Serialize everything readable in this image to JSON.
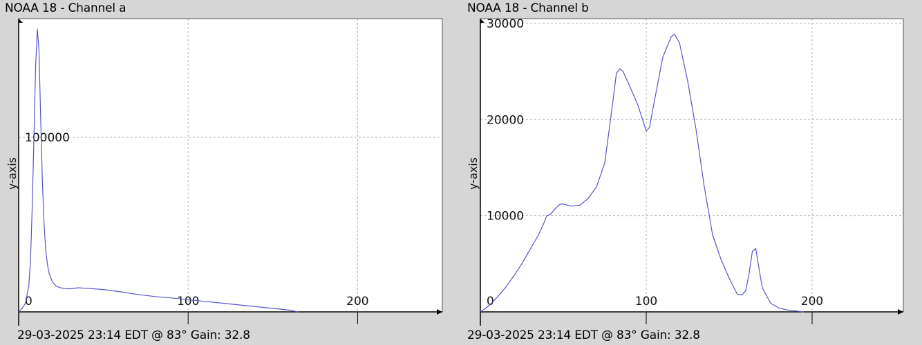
{
  "chart_data": [
    {
      "type": "line",
      "title": "NOAA 18 - Channel a",
      "footer": "29-03-2025 23:14 EDT @ 83° Gain: 32.8",
      "xlabel": "",
      "ylabel": "y-axis",
      "xlim": [
        0,
        250
      ],
      "ylim": [
        0,
        168000
      ],
      "xticks": [
        0,
        100,
        200
      ],
      "yticks": [
        100000
      ],
      "grid": true,
      "line_color": "#5555cc",
      "series": [
        {
          "x": [
            0,
            2,
            4,
            6,
            7,
            8,
            9,
            10,
            11,
            12,
            13,
            14,
            15,
            16,
            17,
            18,
            20,
            22,
            24,
            26,
            30,
            35,
            40,
            50,
            60,
            70,
            80,
            90,
            100,
            110,
            120,
            130,
            140,
            150,
            160,
            162,
            165
          ],
          "y": [
            0,
            2000,
            5000,
            15000,
            30000,
            60000,
            100000,
            140000,
            162000,
            150000,
            110000,
            75000,
            50000,
            35000,
            27000,
            22000,
            17000,
            15000,
            14000,
            13500,
            13200,
            13800,
            13500,
            12800,
            11500,
            10000,
            8800,
            8000,
            7000,
            6000,
            5000,
            4000,
            3000,
            2000,
            1000,
            500,
            0
          ]
        }
      ]
    },
    {
      "type": "line",
      "title": "NOAA 18 - Channel b",
      "footer": "29-03-2025 23:14 EDT @ 83° Gain: 32.8",
      "xlabel": "",
      "ylabel": "y-axis",
      "xlim": [
        0,
        255
      ],
      "ylim": [
        0,
        30500
      ],
      "xticks": [
        0,
        100,
        200
      ],
      "yticks": [
        10000,
        20000,
        30000
      ],
      "grid": true,
      "line_color": "#5555cc",
      "series": [
        {
          "x": [
            0,
            5,
            10,
            15,
            20,
            25,
            30,
            35,
            38,
            40,
            42,
            45,
            48,
            50,
            55,
            60,
            65,
            70,
            75,
            80,
            82,
            84,
            86,
            90,
            95,
            100,
            102,
            105,
            110,
            115,
            117,
            120,
            125,
            130,
            135,
            140,
            145,
            150,
            155,
            158,
            160,
            162,
            164,
            166,
            168,
            170,
            175,
            180,
            185,
            190,
            195
          ],
          "y": [
            0,
            600,
            1500,
            2500,
            3700,
            5000,
            6500,
            8000,
            9100,
            10000,
            10100,
            10700,
            11200,
            11200,
            11000,
            11100,
            11800,
            13000,
            15500,
            22000,
            24800,
            25300,
            25000,
            23500,
            21500,
            18800,
            19200,
            22000,
            26500,
            28600,
            28900,
            28000,
            24000,
            19000,
            13000,
            8000,
            5500,
            3500,
            1800,
            1800,
            2200,
            4000,
            6300,
            6600,
            4500,
            2500,
            900,
            400,
            200,
            100,
            0
          ]
        }
      ]
    }
  ]
}
